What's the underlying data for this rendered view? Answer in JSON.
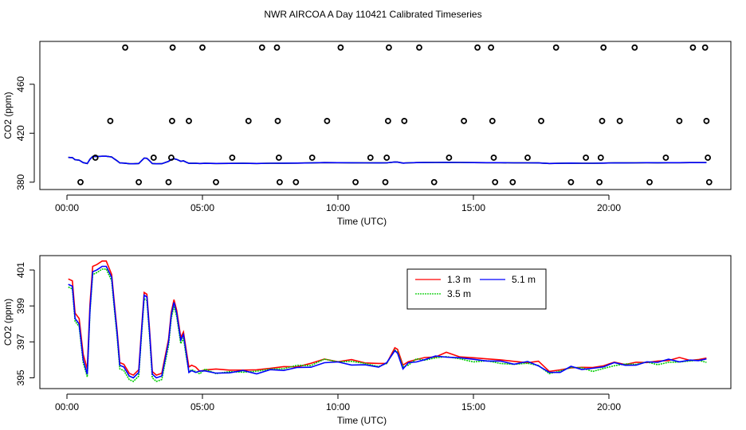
{
  "title": "NWR AIRCOA A  Day 110421  Calibrated Timeseries",
  "chart_data": [
    {
      "type": "scatter+line",
      "name": "top-panel",
      "xlabel": "Time (UTC)",
      "ylabel": "CO2 (ppm)",
      "xlim": [
        -1.0,
        24.5
      ],
      "ylim": [
        374,
        495
      ],
      "xticks": [
        0,
        5,
        10,
        15,
        20
      ],
      "xtick_labels": [
        "00:00",
        "05:00",
        "10:00",
        "15:00",
        "20:00"
      ],
      "yticks": [
        380,
        420,
        460
      ],
      "ytick_labels": [
        "380",
        "420",
        "460"
      ],
      "scatter_points": [
        {
          "x": 0.5,
          "y": 380
        },
        {
          "x": 1.05,
          "y": 400
        },
        {
          "x": 1.6,
          "y": 430
        },
        {
          "x": 2.15,
          "y": 490
        },
        {
          "x": 2.65,
          "y": 380
        },
        {
          "x": 3.2,
          "y": 400
        },
        {
          "x": 3.75,
          "y": 380
        },
        {
          "x": 3.85,
          "y": 400
        },
        {
          "x": 3.88,
          "y": 430
        },
        {
          "x": 3.9,
          "y": 490
        },
        {
          "x": 4.5,
          "y": 430
        },
        {
          "x": 5.0,
          "y": 490
        },
        {
          "x": 5.5,
          "y": 380
        },
        {
          "x": 6.1,
          "y": 400
        },
        {
          "x": 6.7,
          "y": 430
        },
        {
          "x": 7.2,
          "y": 490
        },
        {
          "x": 7.75,
          "y": 490
        },
        {
          "x": 7.78,
          "y": 430
        },
        {
          "x": 7.82,
          "y": 400
        },
        {
          "x": 7.85,
          "y": 380
        },
        {
          "x": 8.45,
          "y": 380
        },
        {
          "x": 9.05,
          "y": 400
        },
        {
          "x": 9.6,
          "y": 430
        },
        {
          "x": 10.1,
          "y": 490
        },
        {
          "x": 10.65,
          "y": 380
        },
        {
          "x": 11.2,
          "y": 400
        },
        {
          "x": 11.75,
          "y": 380
        },
        {
          "x": 11.8,
          "y": 400
        },
        {
          "x": 11.85,
          "y": 430
        },
        {
          "x": 11.88,
          "y": 490
        },
        {
          "x": 12.45,
          "y": 430
        },
        {
          "x": 13.0,
          "y": 490
        },
        {
          "x": 13.55,
          "y": 380
        },
        {
          "x": 14.1,
          "y": 400
        },
        {
          "x": 14.65,
          "y": 430
        },
        {
          "x": 15.15,
          "y": 490
        },
        {
          "x": 15.65,
          "y": 490
        },
        {
          "x": 15.7,
          "y": 430
        },
        {
          "x": 15.75,
          "y": 400
        },
        {
          "x": 15.8,
          "y": 380
        },
        {
          "x": 16.45,
          "y": 380
        },
        {
          "x": 17.0,
          "y": 400
        },
        {
          "x": 17.5,
          "y": 430
        },
        {
          "x": 18.05,
          "y": 490
        },
        {
          "x": 18.6,
          "y": 380
        },
        {
          "x": 19.15,
          "y": 400
        },
        {
          "x": 19.65,
          "y": 380
        },
        {
          "x": 19.7,
          "y": 400
        },
        {
          "x": 19.75,
          "y": 430
        },
        {
          "x": 19.8,
          "y": 490
        },
        {
          "x": 20.4,
          "y": 430
        },
        {
          "x": 20.95,
          "y": 490
        },
        {
          "x": 21.5,
          "y": 380
        },
        {
          "x": 22.1,
          "y": 400
        },
        {
          "x": 22.6,
          "y": 430
        },
        {
          "x": 23.1,
          "y": 490
        },
        {
          "x": 23.55,
          "y": 490
        },
        {
          "x": 23.6,
          "y": 430
        },
        {
          "x": 23.65,
          "y": 400
        },
        {
          "x": 23.7,
          "y": 380
        }
      ]
    },
    {
      "type": "line",
      "name": "bottom-panel",
      "xlabel": "Time (UTC)",
      "ylabel": "CO2 (ppm)",
      "xlim": [
        -1.0,
        24.5
      ],
      "ylim": [
        394.4,
        401.8
      ],
      "xticks": [
        0,
        5,
        10,
        15,
        20
      ],
      "xtick_labels": [
        "00:00",
        "05:00",
        "10:00",
        "15:00",
        "20:00"
      ],
      "yticks": [
        395,
        397,
        399,
        401
      ],
      "ytick_labels": [
        "395",
        "397",
        "399",
        "401"
      ],
      "legend": {
        "position": "top-center-right",
        "entries": [
          "1.3 m",
          "3.5 m",
          "5.1 m"
        ]
      },
      "base_series": {
        "x": [
          0.05,
          0.2,
          0.3,
          0.45,
          0.6,
          0.75,
          0.85,
          0.95,
          1.1,
          1.3,
          1.45,
          1.65,
          1.75,
          1.85,
          1.95,
          2.1,
          2.3,
          2.45,
          2.65,
          2.75,
          2.85,
          2.95,
          3.05,
          3.15,
          3.3,
          3.5,
          3.75,
          3.85,
          3.95,
          4.05,
          4.2,
          4.3,
          4.4,
          4.5,
          4.6,
          4.75,
          4.9,
          5.1,
          5.5,
          6.0,
          6.5,
          7.0,
          7.5,
          8.0,
          8.5,
          9.0,
          9.5,
          10.0,
          10.5,
          11.0,
          11.5,
          11.8,
          12.1,
          12.2,
          12.4,
          12.6,
          12.9,
          13.2,
          13.6,
          14.0,
          14.5,
          15.0,
          15.5,
          16.0,
          16.5,
          17.0,
          17.4,
          17.8,
          18.2,
          18.6,
          19.0,
          19.4,
          19.8,
          20.2,
          20.6,
          21.0,
          21.4,
          21.8,
          22.2,
          22.6,
          23.0,
          23.3,
          23.6
        ],
        "y": [
          400.2,
          400.1,
          398.3,
          398.0,
          396.0,
          395.2,
          398.8,
          400.9,
          401.0,
          401.2,
          401.2,
          400.6,
          399.0,
          397.5,
          395.7,
          395.6,
          395.1,
          395.0,
          395.3,
          397.5,
          399.6,
          399.5,
          397.5,
          395.2,
          395.0,
          395.1,
          397.0,
          398.5,
          399.2,
          398.6,
          397.1,
          397.4,
          396.4,
          395.4,
          395.5,
          395.4,
          395.3,
          395.4,
          395.3,
          395.35,
          395.4,
          395.3,
          395.5,
          395.55,
          395.6,
          395.7,
          396.0,
          395.9,
          395.85,
          395.8,
          395.7,
          395.8,
          396.5,
          396.4,
          395.6,
          395.8,
          396.0,
          396.05,
          396.1,
          396.2,
          396.1,
          396.0,
          395.9,
          395.9,
          395.8,
          395.8,
          395.7,
          395.3,
          395.4,
          395.6,
          395.5,
          395.5,
          395.6,
          395.8,
          395.7,
          395.8,
          395.9,
          395.85,
          395.9,
          395.95,
          396.0,
          396.0,
          396.0
        ]
      },
      "series": [
        {
          "name": "1.3 m",
          "color": "#ff0000",
          "dash": "solid",
          "offsets": [
            0.3,
            0.15,
            0.2,
            0.15,
            0.1
          ]
        },
        {
          "name": "3.5 m",
          "color": "#00cc00",
          "dash": "dotted",
          "offsets": [
            -0.15,
            -0.2,
            -0.05,
            0.0,
            -0.1
          ]
        },
        {
          "name": "5.1 m",
          "color": "#0000ff",
          "dash": "solid",
          "offsets": [
            0.0,
            0.0,
            -0.1,
            -0.05,
            0.0
          ]
        }
      ]
    }
  ]
}
